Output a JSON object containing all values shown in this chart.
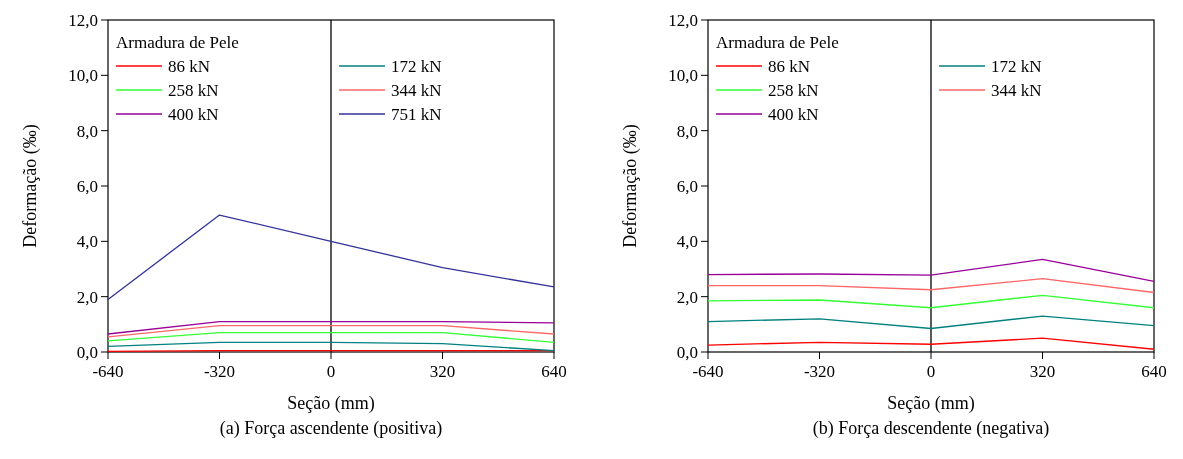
{
  "chart_data": [
    {
      "type": "line",
      "title": "(a) Força ascendente (positiva)",
      "xlabel": "Seção (mm)",
      "ylabel": "Deformação (‰)",
      "legend_title": "Armadura de Pele",
      "legend": "top left",
      "grid": false,
      "line_style": "solid",
      "marker": "none",
      "x": [
        -640,
        -320,
        0,
        320,
        640
      ],
      "xlim": [
        -640,
        640
      ],
      "xticks": [
        -640,
        -320,
        0,
        320,
        640
      ],
      "ylim": [
        0,
        12
      ],
      "yticks": [
        {
          "value": 0,
          "label": "0,0"
        },
        {
          "value": 2,
          "label": "2,0"
        },
        {
          "value": 4,
          "label": "4,0"
        },
        {
          "value": 6,
          "label": "6,0"
        },
        {
          "value": 8,
          "label": "8,0"
        },
        {
          "value": 10,
          "label": "10,0"
        },
        {
          "value": 12,
          "label": "12,0"
        }
      ],
      "ref_lines": [
        {
          "axis": "x",
          "value": 0,
          "color": "#000000"
        }
      ],
      "series": [
        {
          "name": "86 kN",
          "color": "#ff0000",
          "values": [
            0.02,
            0.05,
            0.05,
            0.05,
            0.05
          ]
        },
        {
          "name": "172 kN",
          "color": "#008080",
          "values": [
            0.2,
            0.35,
            0.35,
            0.3,
            0.05
          ]
        },
        {
          "name": "258 kN",
          "color": "#33ff33",
          "values": [
            0.4,
            0.7,
            0.7,
            0.7,
            0.35
          ]
        },
        {
          "name": "344 kN",
          "color": "#ff6666",
          "values": [
            0.55,
            0.95,
            0.95,
            0.95,
            0.65
          ]
        },
        {
          "name": "400 kN",
          "color": "#990099",
          "values": [
            0.65,
            1.1,
            1.1,
            1.1,
            1.05
          ]
        },
        {
          "name": "751 kN",
          "color": "#333399",
          "values": [
            1.9,
            4.95,
            4.0,
            3.05,
            2.35
          ]
        }
      ]
    },
    {
      "type": "line",
      "title": "(b) Força descendente (negativa)",
      "xlabel": "Seção (mm)",
      "ylabel": "Deformação (‰)",
      "legend_title": "Armadura de Pele",
      "legend": "top left",
      "grid": false,
      "line_style": "solid",
      "marker": "none",
      "x": [
        -640,
        -320,
        0,
        320,
        640
      ],
      "xlim": [
        -640,
        640
      ],
      "xticks": [
        -640,
        -320,
        0,
        320,
        640
      ],
      "ylim": [
        0,
        12
      ],
      "yticks": [
        {
          "value": 0,
          "label": "0,0"
        },
        {
          "value": 2,
          "label": "2,0"
        },
        {
          "value": 4,
          "label": "4,0"
        },
        {
          "value": 6,
          "label": "6,0"
        },
        {
          "value": 8,
          "label": "8,0"
        },
        {
          "value": 10,
          "label": "10,0"
        },
        {
          "value": 12,
          "label": "12,0"
        }
      ],
      "ref_lines": [
        {
          "axis": "x",
          "value": 0,
          "color": "#000000"
        }
      ],
      "series": [
        {
          "name": "86 kN",
          "color": "#ff0000",
          "values": [
            0.25,
            0.35,
            0.28,
            0.5,
            0.1
          ]
        },
        {
          "name": "172 kN",
          "color": "#008080",
          "values": [
            1.1,
            1.2,
            0.85,
            1.3,
            0.95
          ]
        },
        {
          "name": "258 kN",
          "color": "#33ff33",
          "values": [
            1.85,
            1.88,
            1.6,
            2.05,
            1.6
          ]
        },
        {
          "name": "344 kN",
          "color": "#ff6666",
          "values": [
            2.4,
            2.4,
            2.25,
            2.65,
            2.15
          ]
        },
        {
          "name": "400 kN",
          "color": "#990099",
          "values": [
            2.8,
            2.82,
            2.78,
            3.35,
            2.55
          ]
        }
      ]
    }
  ]
}
